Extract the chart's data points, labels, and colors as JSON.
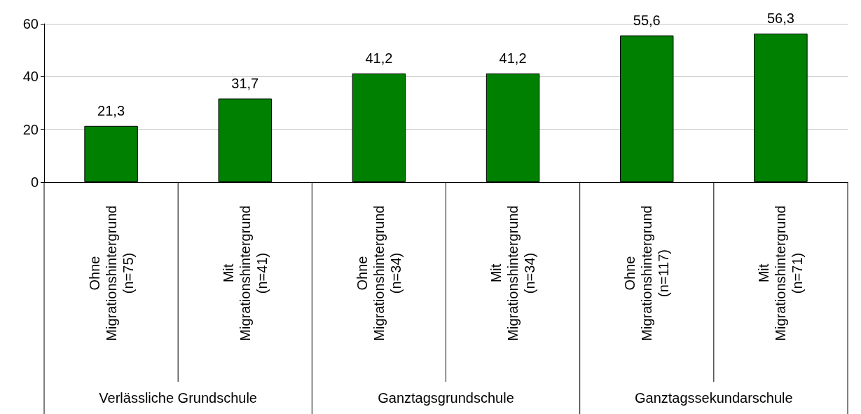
{
  "chart_data": {
    "type": "bar",
    "categories": [
      "Ohne\nMigrationshintergrund\n(n=75)",
      "Mit\nMigrationshintergrund\n(n=41)",
      "Ohne\nMigrationshintergrund\n(n=34)",
      "Mit\nMigrationshintergrund\n(n=34)",
      "Ohne\nMigrationshintergrund\n(n=117)",
      "Mit\nMigrationshintergrund\n(n=71)"
    ],
    "values": [
      21.3,
      31.7,
      41.2,
      41.2,
      55.6,
      56.3
    ],
    "color": "#008000",
    "ylim": [
      0,
      60
    ],
    "yticks": [
      0,
      20,
      40,
      60
    ],
    "grid": "y",
    "value_labels": [
      "21,3",
      "31,7",
      "41,2",
      "41,2",
      "55,6",
      "56,3"
    ],
    "annotations": [
      "Verlässliche Grundschule",
      "Ganztagsgrundschule",
      "Ganztagssekundarschule"
    ]
  }
}
